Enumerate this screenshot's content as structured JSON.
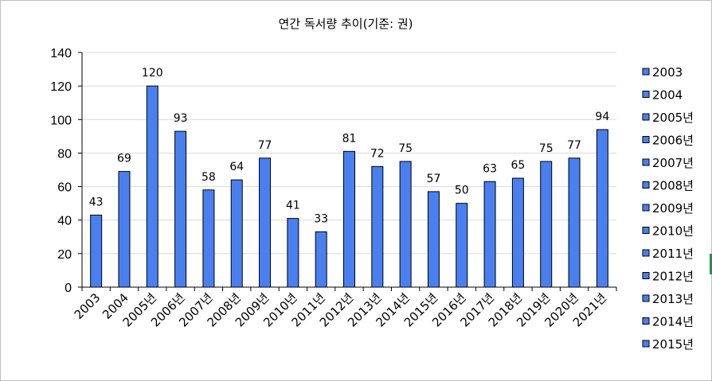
{
  "chart_data": {
    "type": "bar",
    "title": "연간 독서량 추이(기준: 권)",
    "categories": [
      "2003",
      "2004",
      "2005년",
      "2006년",
      "2007년",
      "2008년",
      "2009년",
      "2010년",
      "2011년",
      "2012년",
      "2013년",
      "2014년",
      "2015년",
      "2016년",
      "2017년",
      "2018년",
      "2019년",
      "2020년",
      "2021년"
    ],
    "values": [
      43,
      69,
      120,
      93,
      58,
      64,
      77,
      41,
      33,
      81,
      72,
      75,
      57,
      50,
      63,
      65,
      75,
      77,
      94
    ],
    "ylim": [
      0,
      140
    ],
    "yticks": [
      0,
      20,
      40,
      60,
      80,
      100,
      120,
      140
    ],
    "xlabel": "",
    "ylabel": "",
    "grid": true,
    "data_labels": true,
    "legend_position": "right",
    "legend_entries": [
      "2003",
      "2004",
      "2005년",
      "2006년",
      "2007년",
      "2008년",
      "2009년",
      "2010년",
      "2011년",
      "2012년",
      "2013년",
      "2014년",
      "2015년"
    ],
    "colors": {
      "bar_fill": "#4a7ff0",
      "bar_stroke": "#000000",
      "grid": "#d9d9d9",
      "axis": "#000000",
      "text": "#000000"
    }
  }
}
